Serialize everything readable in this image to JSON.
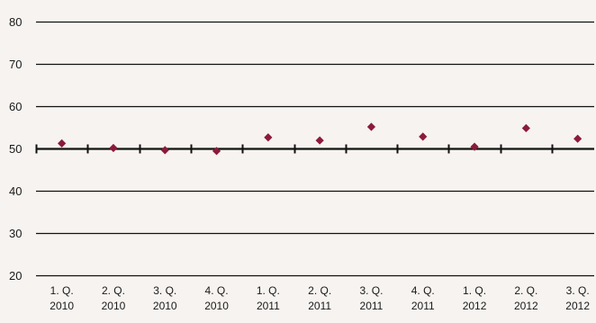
{
  "chart_data": {
    "type": "scatter",
    "categories": [
      [
        "1. Q.",
        "2010"
      ],
      [
        "2. Q.",
        "2010"
      ],
      [
        "3. Q.",
        "2010"
      ],
      [
        "4. Q.",
        "2010"
      ],
      [
        "1. Q.",
        "2011"
      ],
      [
        "2. Q.",
        "2011"
      ],
      [
        "3. Q.",
        "2011"
      ],
      [
        "4. Q.",
        "2011"
      ],
      [
        "1. Q.",
        "2012"
      ],
      [
        "2. Q.",
        "2012"
      ],
      [
        "3. Q.",
        "2012"
      ]
    ],
    "series": [
      {
        "values": [
          51.2,
          50.1,
          49.6,
          49.4,
          52.6,
          51.9,
          55.1,
          52.8,
          50.4,
          54.8,
          52.3
        ]
      }
    ],
    "y_ticks": [
      20,
      30,
      40,
      50,
      60,
      70,
      80
    ],
    "ylim": [
      20,
      80
    ],
    "reference_line": 50,
    "grid": true,
    "marker": "diamond",
    "colors": {
      "marker": "#8b1a3c",
      "grid": "#111111",
      "background": "#f6f3f0"
    }
  }
}
